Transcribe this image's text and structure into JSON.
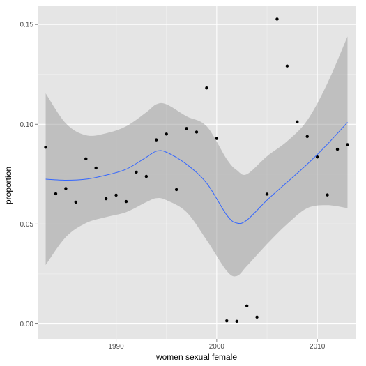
{
  "chart_data": {
    "type": "scatter",
    "title": "",
    "xlabel": "women sexual female",
    "ylabel": "proportion",
    "xlim": [
      1982.2,
      2013.8
    ],
    "ylim": [
      -0.0075,
      0.1595
    ],
    "x_ticks": [
      1990,
      2000,
      2010
    ],
    "y_ticks": [
      0.0,
      0.05,
      0.1,
      0.15
    ],
    "x_tick_labels": [
      "1990",
      "2000",
      "2010"
    ],
    "y_tick_labels": [
      "0.00",
      "0.05",
      "0.10",
      "0.15"
    ],
    "grid": true,
    "points": [
      {
        "x": 1983,
        "y": 0.0885
      },
      {
        "x": 1984,
        "y": 0.0652
      },
      {
        "x": 1985,
        "y": 0.0678
      },
      {
        "x": 1986,
        "y": 0.061
      },
      {
        "x": 1987,
        "y": 0.0827
      },
      {
        "x": 1988,
        "y": 0.0781
      },
      {
        "x": 1989,
        "y": 0.0627
      },
      {
        "x": 1990,
        "y": 0.0645
      },
      {
        "x": 1991,
        "y": 0.0613
      },
      {
        "x": 1992,
        "y": 0.076
      },
      {
        "x": 1993,
        "y": 0.0739
      },
      {
        "x": 1994,
        "y": 0.0922
      },
      {
        "x": 1995,
        "y": 0.0951
      },
      {
        "x": 1996,
        "y": 0.0673
      },
      {
        "x": 1997,
        "y": 0.0979
      },
      {
        "x": 1998,
        "y": 0.0961
      },
      {
        "x": 1999,
        "y": 0.1182
      },
      {
        "x": 2000,
        "y": 0.0929
      },
      {
        "x": 2001,
        "y": 0.0015
      },
      {
        "x": 2002,
        "y": 0.0013
      },
      {
        "x": 2003,
        "y": 0.009
      },
      {
        "x": 2004,
        "y": 0.0034
      },
      {
        "x": 2005,
        "y": 0.065
      },
      {
        "x": 2006,
        "y": 0.1527
      },
      {
        "x": 2007,
        "y": 0.1292
      },
      {
        "x": 2008,
        "y": 0.1012
      },
      {
        "x": 2009,
        "y": 0.0939
      },
      {
        "x": 2010,
        "y": 0.0836
      },
      {
        "x": 2011,
        "y": 0.0646
      },
      {
        "x": 2012,
        "y": 0.0875
      },
      {
        "x": 2013,
        "y": 0.0898
      }
    ],
    "smooth": {
      "method": "loess",
      "x": [
        1983,
        1985,
        1987,
        1989,
        1991,
        1993,
        1994,
        1995,
        1997,
        1999,
        2001,
        2002,
        2003,
        2005,
        2007,
        2009,
        2011,
        2013
      ],
      "y": [
        0.0725,
        0.072,
        0.0725,
        0.0745,
        0.0775,
        0.0835,
        0.0865,
        0.086,
        0.08,
        0.0705,
        0.0545,
        0.0505,
        0.052,
        0.062,
        0.071,
        0.08,
        0.09,
        0.101
      ],
      "lower": [
        0.0295,
        0.0435,
        0.0505,
        0.0535,
        0.056,
        0.061,
        0.063,
        0.062,
        0.056,
        0.042,
        0.0265,
        0.024,
        0.029,
        0.04,
        0.05,
        0.058,
        0.0595,
        0.058
      ],
      "upper": [
        0.1155,
        0.1005,
        0.0945,
        0.0955,
        0.099,
        0.106,
        0.11,
        0.11,
        0.104,
        0.099,
        0.0825,
        0.077,
        0.075,
        0.084,
        0.0915,
        0.102,
        0.1205,
        0.144
      ]
    },
    "colors": {
      "panel": "#e5e5e5",
      "grid_major": "#ffffff",
      "grid_minor": "#f2f2f2",
      "point": "#000000",
      "line": "#3366ff",
      "ribbon": "#999999",
      "tick": "#7f7f7f"
    }
  }
}
